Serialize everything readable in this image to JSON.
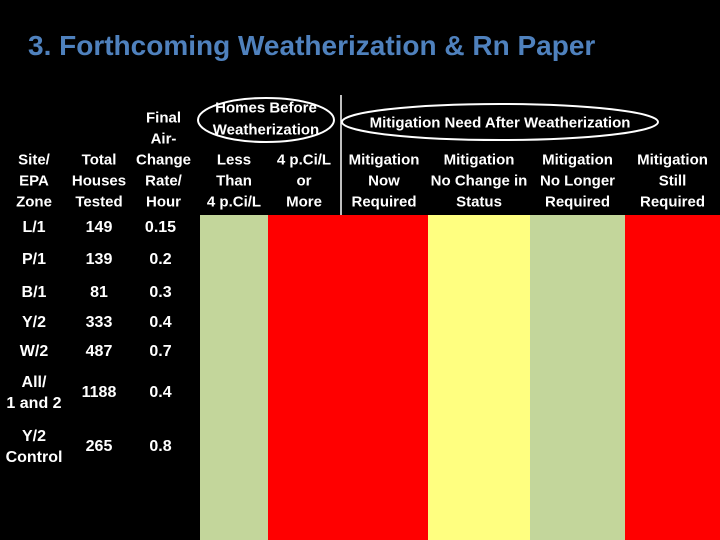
{
  "header": {
    "title": "3. Forthcoming Weatherization & Rn Paper"
  },
  "table": {
    "group_headers": [
      [
        "Homes Before",
        "Weatherization"
      ],
      [
        "Mitigation Need After Weatherization"
      ]
    ],
    "columns": [
      [
        "Site/",
        "EPA",
        "Zone"
      ],
      [
        "Total",
        "Houses",
        "Tested"
      ],
      [
        "Final",
        "Air-",
        "Change",
        "Rate/",
        "Hour"
      ],
      [
        "Less",
        "Than",
        "4 p.Ci/L"
      ],
      [
        "4 p.Ci/L",
        "or",
        "More"
      ],
      [
        "Mitigation",
        "Now",
        "Required"
      ],
      [
        "Mitigation",
        "No Change in",
        "Status"
      ],
      [
        "Mitigation",
        "No Longer",
        "Required"
      ],
      [
        "Mitigation",
        "Still",
        "Required"
      ]
    ],
    "rows": [
      [
        [
          "L/1"
        ],
        "149",
        "0.15"
      ],
      [
        [
          "P/1"
        ],
        "139",
        "0.2"
      ],
      [
        [
          "B/1"
        ],
        "81",
        "0.3"
      ],
      [
        [
          "Y/2"
        ],
        "333",
        "0.4"
      ],
      [
        [
          "W/2"
        ],
        "487",
        "0.7"
      ],
      [
        [
          "All/",
          "1 and 2"
        ],
        "1188",
        "0.4"
      ],
      [
        [
          "Y/2",
          "Control"
        ],
        "265",
        "0.8"
      ]
    ]
  }
}
